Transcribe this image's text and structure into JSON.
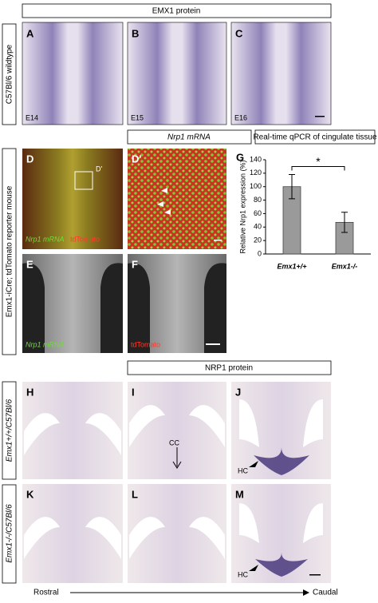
{
  "headers": {
    "emx1_protein": "EMX1 protein",
    "nrp1_mrna": "Nrp1 mRNA",
    "qpcr": "Real-time qPCR of cingulate tissue",
    "nrp1_protein": "NRP1 protein"
  },
  "row_labels": [
    "C57Bl/6 wildtype",
    "Emx1-iCre; tdTomato reporter mouse",
    "Emx1+/+/C57Bl/6",
    "Emx1-/-/C57Bl/6"
  ],
  "panel_letters": [
    "A",
    "B",
    "C",
    "D",
    "D'",
    "E",
    "F",
    "H",
    "I",
    "J",
    "K",
    "L",
    "M"
  ],
  "stages": [
    "E14",
    "E15",
    "E16"
  ],
  "inset_label": "D'",
  "channel_labels": {
    "d_green": "Nrp1 mRNA",
    "d_red": "tdTomato",
    "e_green": "Nrp1 mRNA",
    "f_red": "tdTomato"
  },
  "annotations": [
    "CC",
    "HC",
    "HC"
  ],
  "axis_direction": {
    "start": "Rostral",
    "end": "Caudal"
  },
  "chart_data": {
    "type": "bar",
    "panel_label": "G",
    "y_label": "Relative Nrp1 expression (%)",
    "categories": [
      "Emx1+/+",
      "Emx1-/-"
    ],
    "values": [
      100,
      47
    ],
    "errors": [
      18,
      15
    ],
    "color": "#9a9a9a",
    "ylim": [
      0,
      140
    ],
    "yticks": [
      0,
      20,
      40,
      60,
      80,
      100,
      120,
      140
    ],
    "significance": "*"
  }
}
